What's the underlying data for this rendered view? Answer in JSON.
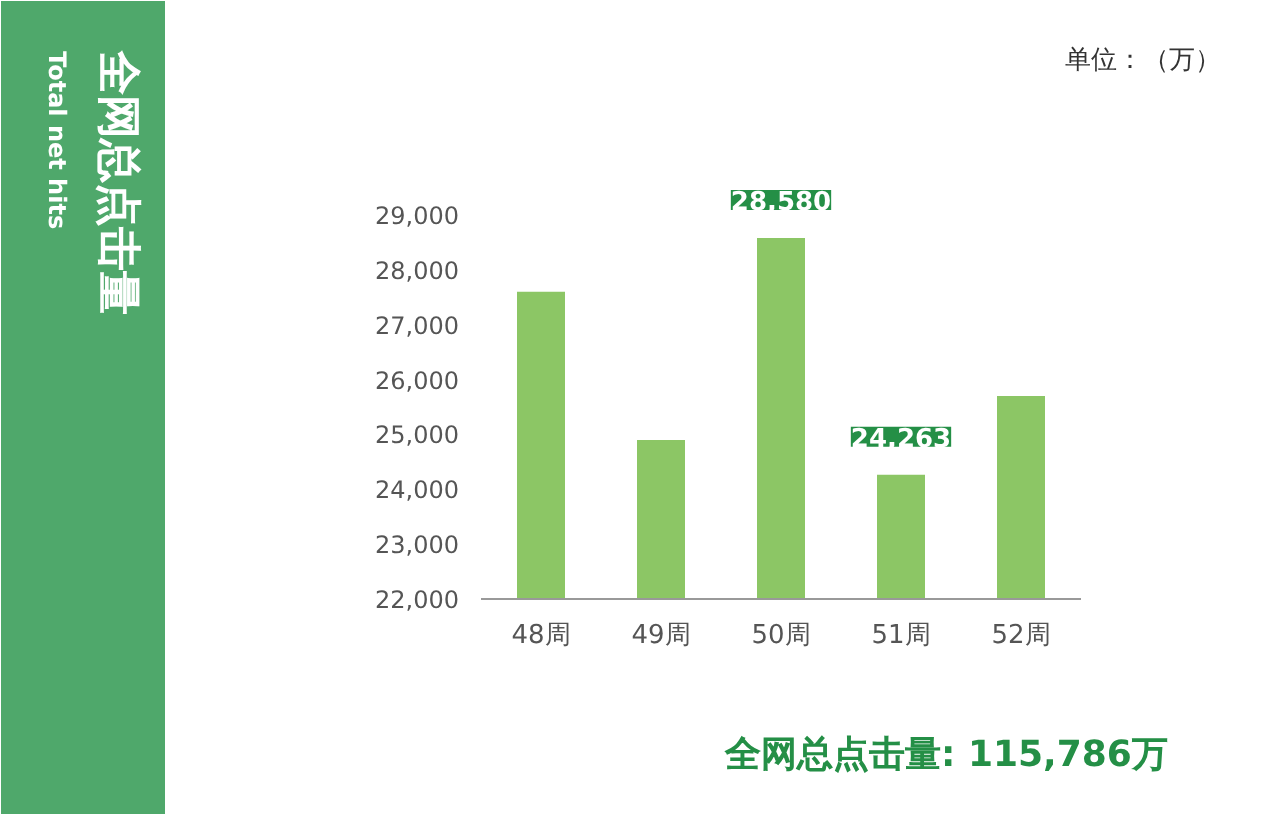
{
  "chart_data": {
    "type": "bar",
    "title": "全网总点击量",
    "subtitle": "Total net hits",
    "categories": [
      "48周",
      "49周",
      "50周",
      "51周",
      "52周"
    ],
    "values": [
      27600,
      24900,
      28580,
      24263,
      25700
    ],
    "color": "#8cc665",
    "value_labels": [
      null,
      null,
      "28,580",
      "24,263",
      null
    ],
    "ylim": [
      22000,
      29000
    ],
    "yticks": [
      {
        "value": 22000,
        "label": "22,000"
      },
      {
        "value": 23000,
        "label": "23,000"
      },
      {
        "value": 24000,
        "label": "24,000"
      },
      {
        "value": 25000,
        "label": "25,000"
      },
      {
        "value": 26000,
        "label": "26,000"
      },
      {
        "value": 27000,
        "label": "27,000"
      },
      {
        "value": 28000,
        "label": "28,000"
      },
      {
        "value": 29000,
        "label": "29,000"
      }
    ],
    "grid": false,
    "annotations": [
      "单位：（万）",
      "全网总点击量: 115,786万"
    ]
  }
}
